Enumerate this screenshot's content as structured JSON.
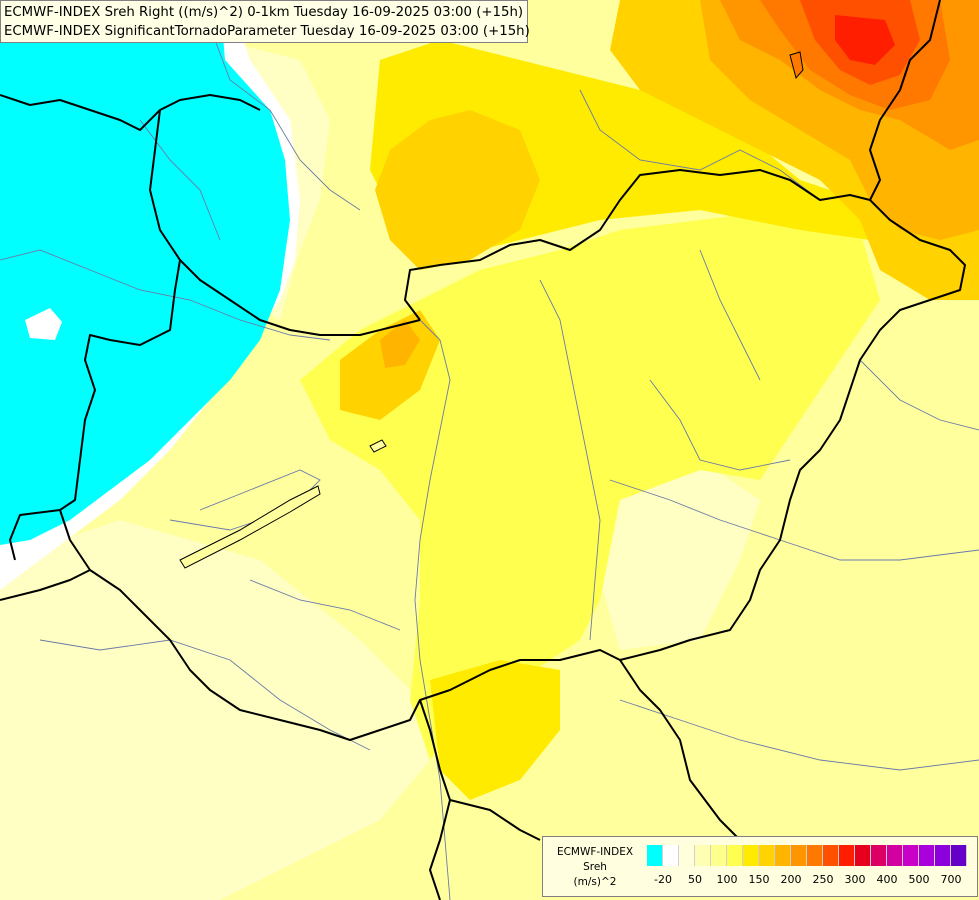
{
  "header": {
    "line1": "ECMWF-INDEX Sreh Right ((m/s)^2) 0-1km Tuesday 16-09-2025 03:00 (+15h)",
    "line2": "ECMWF-INDEX SignificantTornadoParameter Tuesday 16-09-2025 03:00 (+15h)"
  },
  "legend": {
    "model": "ECMWF-INDEX",
    "variable": "Sreh",
    "unit": "(m/s)^2",
    "colors": [
      "#00ffff",
      "#ffffff",
      "#ffffdc",
      "#ffffb4",
      "#ffff8c",
      "#ffff50",
      "#ffeb00",
      "#ffd200",
      "#ffb400",
      "#ff9600",
      "#ff7800",
      "#ff5000",
      "#ff1e00",
      "#e6001e",
      "#dc0064",
      "#d200a0",
      "#c800c8",
      "#aa00dc",
      "#8c00dc",
      "#6400c8",
      "#3200aa",
      "#00008c"
    ],
    "ticks": [
      {
        "label": "-20",
        "index": 1
      },
      {
        "label": "50",
        "index": 3
      },
      {
        "label": "100",
        "index": 5
      },
      {
        "label": "150",
        "index": 7
      },
      {
        "label": "200",
        "index": 9
      },
      {
        "label": "250",
        "index": 11
      },
      {
        "label": "300",
        "index": 13
      },
      {
        "label": "400",
        "index": 15
      },
      {
        "label": "500",
        "index": 17
      },
      {
        "label": "700",
        "index": 19
      }
    ]
  }
}
